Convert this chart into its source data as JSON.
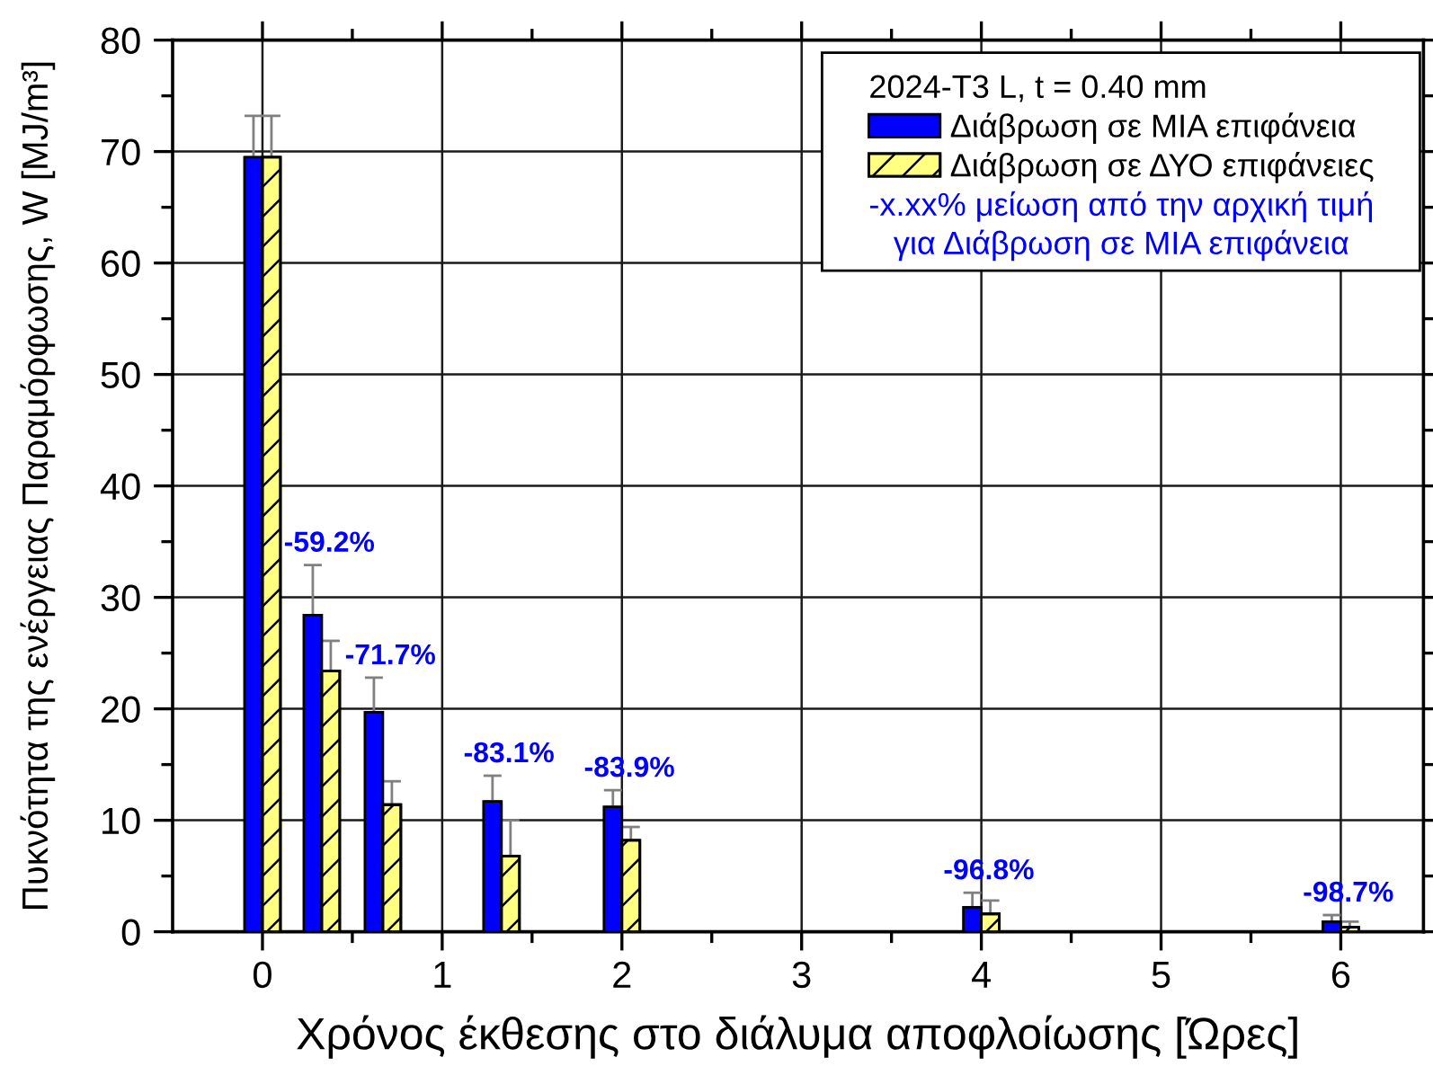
{
  "chart_data": {
    "type": "bar",
    "xlabel": "Χρόνος έκθεσης στο διάλυμα αποφλοίωσης [Ώρες]",
    "ylabel": "Πυκνότητα της ενέργειας Παραμόρφωσης, W [MJ/m³]",
    "legend_title": "2024-T3 L, t = 0.40 mm",
    "x": [
      0,
      0.33,
      0.67,
      1.33,
      2,
      4,
      6
    ],
    "series": [
      {
        "name": "Διάβρωση σε ΜΙΑ επιφάνεια",
        "color": "#0000ff",
        "values": [
          69.5,
          28.4,
          19.7,
          11.7,
          11.2,
          2.2,
          0.9
        ],
        "errors": [
          [
            69.5,
            73.2
          ],
          [
            28.4,
            32.9
          ],
          [
            19.7,
            22.8
          ],
          [
            11.7,
            14.0
          ],
          [
            11.2,
            12.7
          ],
          [
            2.2,
            3.5
          ],
          [
            0.9,
            1.5
          ]
        ]
      },
      {
        "name": "Διάβρωση σε ΔΥΟ επιφάνειες",
        "color": "#ffff80",
        "values": [
          69.5,
          23.4,
          11.4,
          6.8,
          8.2,
          1.6,
          0.4
        ],
        "errors": [
          [
            69.5,
            73.2
          ],
          [
            23.4,
            26.1
          ],
          [
            11.4,
            13.5
          ],
          [
            6.8,
            10.0
          ],
          [
            8.2,
            9.4
          ],
          [
            1.6,
            2.8
          ],
          [
            0.4,
            0.9
          ]
        ]
      }
    ],
    "xlim": [
      -0.5,
      6.46
    ],
    "xticks": [
      0,
      {
        "value": 0.5,
        "label": null
      },
      1,
      {
        "value": 1.5,
        "label": null
      },
      2,
      {
        "value": 2.5,
        "label": null
      },
      3,
      {
        "value": 3.5,
        "label": null
      },
      4,
      {
        "value": 4.5,
        "label": null
      },
      5,
      {
        "value": 5.5,
        "label": null
      },
      6
    ],
    "ylim": [
      0,
      80
    ],
    "yticks": [
      0,
      {
        "value": 5,
        "label": null
      },
      10,
      {
        "value": 15,
        "label": null
      },
      20,
      {
        "value": 25,
        "label": null
      },
      30,
      {
        "value": 35,
        "label": null
      },
      40,
      {
        "value": 45,
        "label": null
      },
      50,
      {
        "value": 55,
        "label": null
      },
      60,
      {
        "value": 65,
        "label": null
      },
      70,
      {
        "value": 75,
        "label": null
      },
      80
    ],
    "grid": true,
    "legend": "top right",
    "annotations": [
      {
        "text": "-59.2%",
        "x": 0.33,
        "y": 28.4
      },
      {
        "text": "-71.7%",
        "x": 0.67,
        "y": 19.7
      },
      {
        "text": "-83.1%",
        "x": 1.33,
        "y": 11.7
      },
      {
        "text": "-83.9%",
        "x": 2,
        "y": 11.2
      },
      {
        "text": "-96.8%",
        "x": 4,
        "y": 2.2
      },
      {
        "text": "-98.7%",
        "x": 6,
        "y": 0.9
      },
      "-x.xx% μείωση από την αρχική τιμή\nγια Διάβρωση σε ΜΙΑ επιφάνεια"
    ]
  }
}
